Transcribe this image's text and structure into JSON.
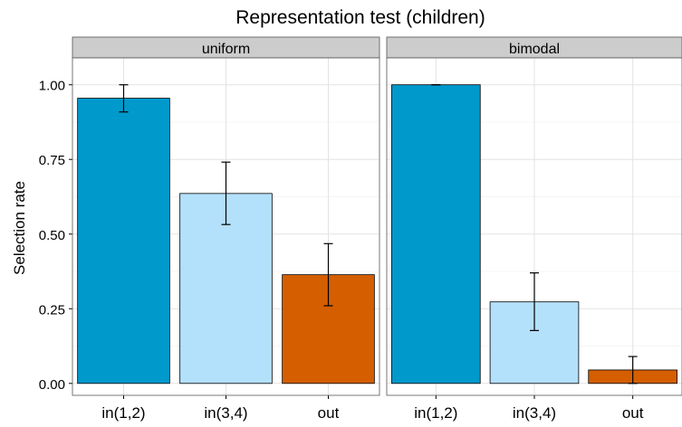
{
  "chart_data": {
    "type": "bar",
    "title": "Representation test (children)",
    "ylabel": "Selection rate",
    "xlabel": "",
    "ylim": [
      -0.04,
      1.09
    ],
    "yticks": [
      0.0,
      0.25,
      0.5,
      0.75,
      1.0
    ],
    "ytick_labels": [
      "0.00",
      "0.25",
      "0.50",
      "0.75",
      "1.00"
    ],
    "categories": [
      "in(1,2)",
      "in(3,4)",
      "out"
    ],
    "category_colors": [
      "#0099cc",
      "#b3e0fb",
      "#d55e00"
    ],
    "grid": true,
    "legend": "none",
    "panels": [
      {
        "name": "uniform",
        "values": [
          0.955,
          0.636,
          0.364
        ],
        "error_low": [
          0.909,
          0.532,
          0.26
        ],
        "error_high": [
          1.0,
          0.741,
          0.468
        ]
      },
      {
        "name": "bimodal",
        "values": [
          1.0,
          0.273,
          0.045
        ],
        "error_low": [
          1.0,
          0.177,
          0.0
        ],
        "error_high": [
          1.0,
          0.37,
          0.09
        ]
      }
    ]
  }
}
